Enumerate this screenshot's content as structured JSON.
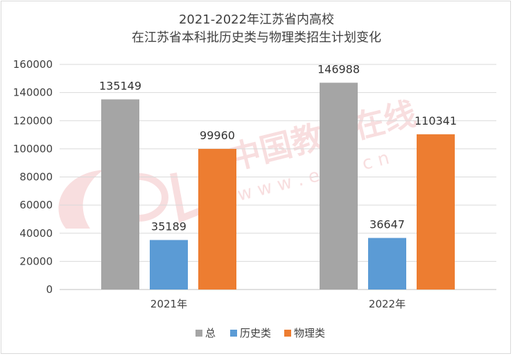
{
  "chart_data": {
    "type": "bar",
    "title": [
      "2021-2022年江苏省内高校",
      "在江苏省本科批历史类与物理类招生计划变化"
    ],
    "categories": [
      "2021年",
      "2022年"
    ],
    "series": [
      {
        "name": "总",
        "values": [
          135149,
          146988
        ],
        "color": "#a5a5a5"
      },
      {
        "name": "历史类",
        "values": [
          35189,
          36647
        ],
        "color": "#5b9bd5"
      },
      {
        "name": "物理类",
        "values": [
          99960,
          110341
        ],
        "color": "#ed7d31"
      }
    ],
    "ylim": [
      0,
      160000
    ],
    "yticks": [
      0,
      20000,
      40000,
      60000,
      80000,
      100000,
      120000,
      140000,
      160000
    ],
    "grid": true,
    "legend": "bottom"
  },
  "watermark": {
    "text": "中国教育在线",
    "url": "w w w . e o l . c n"
  }
}
